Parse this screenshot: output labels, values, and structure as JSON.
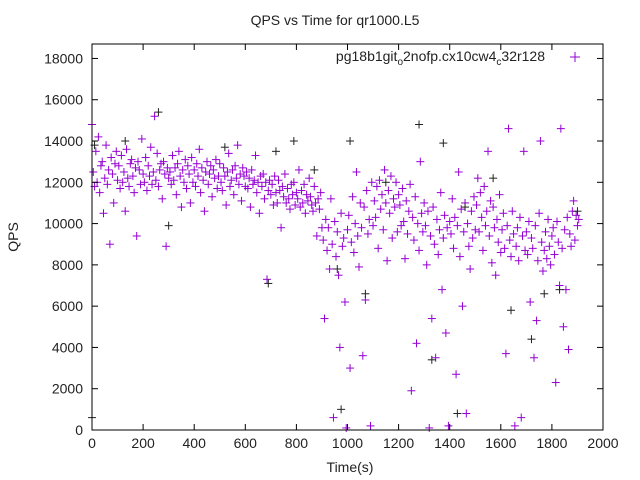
{
  "chart_data": {
    "type": "scatter",
    "title": "QPS vs Time for qr1000.L5",
    "xlabel": "Time(s)",
    "ylabel": "QPS",
    "xlim": [
      0,
      2000
    ],
    "ylim": [
      0,
      18700
    ],
    "xticks": [
      0,
      200,
      400,
      600,
      800,
      1000,
      1200,
      1400,
      1600,
      1800,
      2000
    ],
    "yticks": [
      0,
      2000,
      4000,
      6000,
      8000,
      10000,
      12000,
      14000,
      16000,
      18000
    ],
    "grid": false,
    "legend_placement": "top-right",
    "marker": "plus",
    "series": [
      {
        "name_parts": [
          "pg18b1git",
          "o",
          "2nofp.cx10cw4",
          "c",
          "32r128"
        ],
        "color": "#9400d3",
        "x_start": 0,
        "x_step": 5,
        "y": [
          14800,
          12500,
          11800,
          13500,
          12000,
          14200,
          11500,
          12800,
          13000,
          10500,
          12200,
          13800,
          11900,
          12600,
          9000,
          13200,
          12400,
          11000,
          12900,
          13500,
          12100,
          12800,
          11700,
          13300,
          12000,
          12500,
          10600,
          13600,
          12200,
          11800,
          12900,
          13100,
          12300,
          11500,
          12700,
          9400,
          13000,
          12600,
          11900,
          14100,
          12400,
          12000,
          13200,
          11600,
          12800,
          12300,
          13700,
          11900,
          12500,
          15200,
          12100,
          13400,
          11800,
          12600,
          12900,
          11200,
          13000,
          12400,
          8900,
          12700,
          12200,
          12500,
          11900,
          13300,
          12100,
          12700,
          11400,
          12900,
          13500,
          12300,
          10800,
          12600,
          12000,
          13100,
          11700,
          12800,
          12400,
          11000,
          13200,
          12000,
          12600,
          11800,
          12900,
          12300,
          13600,
          11500,
          12700,
          12100,
          10600,
          12500,
          13000,
          11900,
          12400,
          12800,
          11300,
          12600,
          12200,
          13100,
          11700,
          12300,
          12900,
          12000,
          11600,
          12700,
          12300,
          10900,
          12500,
          13400,
          11800,
          12100,
          12600,
          11400,
          12800,
          12200,
          13800,
          11900,
          12400,
          11100,
          12700,
          12300,
          11800,
          12500,
          11700,
          12200,
          10800,
          12600,
          11900,
          12100,
          13300,
          11500,
          12000,
          10500,
          12300,
          11800,
          12400,
          11200,
          12000,
          7300,
          11600,
          12100,
          11400,
          11900,
          10900,
          12300,
          11500,
          11000,
          12100,
          11600,
          9800,
          11800,
          11300,
          12400,
          11000,
          11700,
          11200,
          10700,
          11900,
          11400,
          12000,
          10900,
          11500,
          11200,
          12600,
          10800,
          11600,
          11000,
          11900,
          10500,
          11400,
          11100,
          12200,
          11300,
          10900,
          10600,
          11800,
          11000,
          9400,
          11200,
          10700,
          11500,
          9800,
          9200,
          5400,
          10200,
          8700,
          9800,
          7800,
          11200,
          9000,
          600,
          10100,
          8400,
          9600,
          7500,
          4000,
          10500,
          8900,
          9300,
          6200,
          100,
          9700,
          10400,
          3000,
          9100,
          11300,
          8600,
          10000,
          12500,
          9400,
          7900,
          11000,
          9800,
          3600,
          10800,
          6300,
          11600,
          9500,
          10200,
          200,
          12000,
          9900,
          11100,
          10300,
          11800,
          8800,
          12100,
          10700,
          11400,
          9700,
          12600,
          11000,
          8200,
          11600,
          10500,
          12300,
          9300,
          11200,
          10800,
          12000,
          9600,
          11400,
          10900,
          9900,
          11700,
          10100,
          8300,
          11100,
          9500,
          10600,
          11900,
          1900,
          10300,
          9200,
          11300,
          4200,
          10000,
          8700,
          13000,
          10500,
          9600,
          11000,
          9900,
          8000,
          10600,
          100,
          9400,
          5400,
          10800,
          9000,
          3500,
          10200,
          8500,
          9700,
          11500,
          6800,
          9300,
          10400,
          4700,
          9800,
          200,
          10100,
          9500,
          11200,
          8800,
          10300,
          2700,
          9900,
          12500,
          8400,
          10700,
          6000,
          9600,
          11000,
          800,
          10000,
          8900,
          7800,
          10600,
          9300,
          11300,
          9700,
          10900,
          12200,
          9600,
          11500,
          10300,
          8700,
          11800,
          9900,
          10600,
          13500,
          9400,
          11100,
          8100,
          10800,
          9800,
          7500,
          10200,
          9100,
          11400,
          8600,
          9700,
          10500,
          8800,
          3700,
          9900,
          14600,
          9200,
          8400,
          10600,
          9500,
          200,
          8900,
          9800,
          8200,
          10300,
          600,
          9400,
          13500,
          8700,
          9600,
          8500,
          10100,
          6200,
          9300,
          8800,
          3500,
          9900,
          5300,
          8200,
          10500,
          14000,
          9100,
          7700,
          8700,
          9600,
          8300,
          10200,
          8900,
          8000,
          9400,
          9800,
          8500,
          2300,
          10100,
          9100,
          7000,
          14600,
          8800,
          5000,
          9700,
          6800,
          10300,
          3900,
          9500,
          8900,
          10600,
          11100,
          9200,
          10400,
          9900,
          10200
        ]
      },
      {
        "name_parts": [],
        "color": "#222222",
        "points": [
          [
            0,
            600
          ],
          [
            10,
            13800
          ],
          [
            130,
            14000
          ],
          [
            260,
            15400
          ],
          [
            300,
            9900
          ],
          [
            520,
            13700
          ],
          [
            690,
            7100
          ],
          [
            720,
            13500
          ],
          [
            790,
            14000
          ],
          [
            870,
            12600
          ],
          [
            960,
            7800
          ],
          [
            975,
            1000
          ],
          [
            1010,
            14000
          ],
          [
            1070,
            6600
          ],
          [
            1150,
            12000
          ],
          [
            1280,
            14800
          ],
          [
            1330,
            3400
          ],
          [
            1375,
            13900
          ],
          [
            1430,
            800
          ],
          [
            1460,
            10800
          ],
          [
            1570,
            12200
          ],
          [
            1640,
            5800
          ],
          [
            1720,
            4400
          ],
          [
            1770,
            6600
          ],
          [
            1830,
            6800
          ],
          [
            1900,
            10600
          ]
        ]
      }
    ]
  }
}
